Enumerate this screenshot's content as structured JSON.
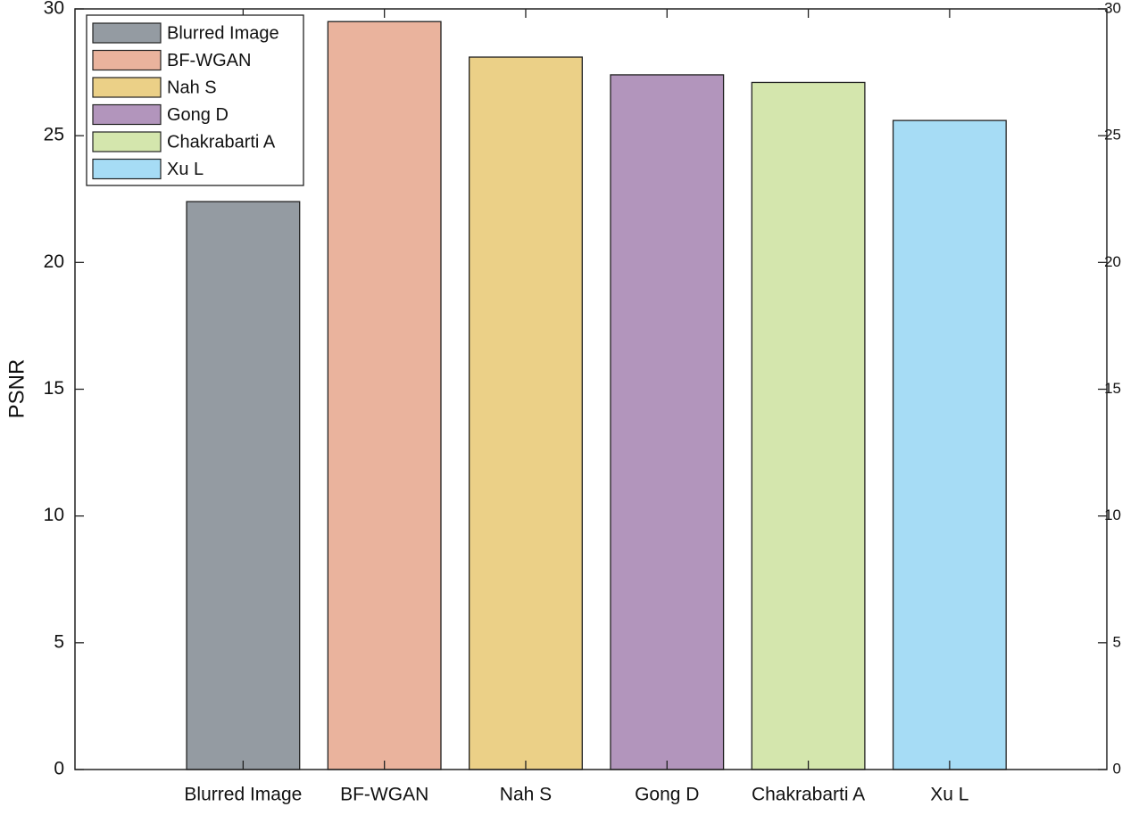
{
  "chart_data": {
    "type": "bar",
    "y_label": "PSNR",
    "categories": [
      "Blurred Image",
      "BF-WGAN",
      "Nah S",
      "Gong D",
      "Chakrabarti A",
      "Xu L"
    ],
    "values": [
      22.4,
      29.5,
      28.1,
      27.4,
      27.1,
      25.6
    ],
    "colors": [
      "#949ba2",
      "#eab39d",
      "#ebd087",
      "#b295bc",
      "#d4e6ad",
      "#a6dcf5"
    ],
    "ylim": [
      0,
      30
    ],
    "yticks": [
      0,
      5,
      10,
      15,
      20,
      25,
      30
    ],
    "legend": "upper left"
  }
}
